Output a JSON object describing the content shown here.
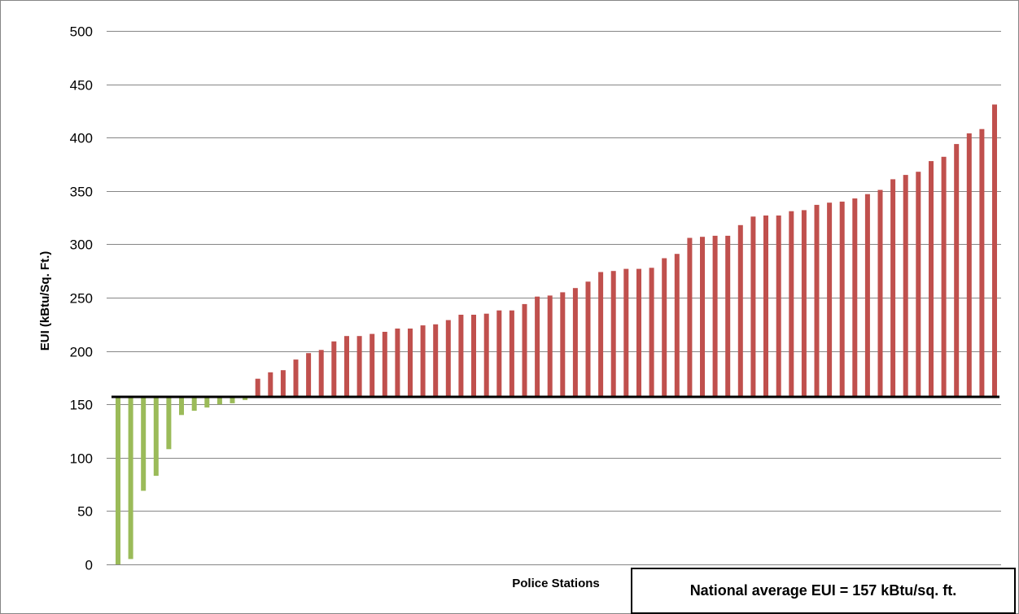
{
  "chart_data": {
    "type": "bar",
    "title": "",
    "xlabel": "Police Stations",
    "ylabel": "EUI (kBtu/Sq. Ft.)",
    "ylim": [
      0,
      500
    ],
    "yticks": [
      0,
      50,
      100,
      150,
      200,
      250,
      300,
      350,
      400,
      450,
      500
    ],
    "grid": true,
    "baseline": 157,
    "annotation": "National average EUI = 157 kBtu/sq. ft.",
    "colors": {
      "below": "#9bbb59",
      "above": "#c0504d",
      "baseline": "#000000",
      "grid": "#868686"
    },
    "values": [
      0,
      5,
      69,
      83,
      108,
      140,
      144,
      147,
      150,
      151,
      154,
      174,
      180,
      182,
      192,
      198,
      201,
      209,
      214,
      214,
      216,
      218,
      221,
      221,
      224,
      225,
      229,
      234,
      234,
      235,
      238,
      238,
      244,
      251,
      252,
      255,
      259,
      265,
      274,
      275,
      277,
      277,
      278,
      287,
      291,
      306,
      307,
      308,
      308,
      318,
      326,
      327,
      327,
      331,
      332,
      337,
      339,
      340,
      343,
      347,
      351,
      361,
      365,
      368,
      378,
      382,
      394,
      404,
      408,
      431
    ]
  }
}
